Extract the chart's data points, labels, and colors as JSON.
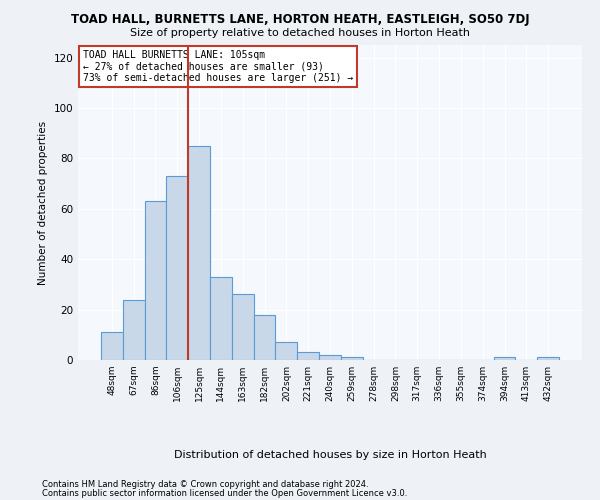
{
  "title1": "TOAD HALL, BURNETTS LANE, HORTON HEATH, EASTLEIGH, SO50 7DJ",
  "title2": "Size of property relative to detached houses in Horton Heath",
  "xlabel": "Distribution of detached houses by size in Horton Heath",
  "ylabel": "Number of detached properties",
  "categories": [
    "48sqm",
    "67sqm",
    "86sqm",
    "106sqm",
    "125sqm",
    "144sqm",
    "163sqm",
    "182sqm",
    "202sqm",
    "221sqm",
    "240sqm",
    "259sqm",
    "278sqm",
    "298sqm",
    "317sqm",
    "336sqm",
    "355sqm",
    "374sqm",
    "394sqm",
    "413sqm",
    "432sqm"
  ],
  "values": [
    11,
    24,
    63,
    73,
    85,
    33,
    26,
    18,
    7,
    3,
    2,
    1,
    0,
    0,
    0,
    0,
    0,
    0,
    1,
    0,
    1
  ],
  "bar_color": "#c8d8e8",
  "bar_edge_color": "#5b9bd5",
  "vline_x": 3.5,
  "vline_color": "#c0392b",
  "annotation_text": "TOAD HALL BURNETTS LANE: 105sqm\n← 27% of detached houses are smaller (93)\n73% of semi-detached houses are larger (251) →",
  "annotation_box_color": "white",
  "annotation_box_edge_color": "#c0392b",
  "ylim": [
    0,
    125
  ],
  "yticks": [
    0,
    20,
    40,
    60,
    80,
    100,
    120
  ],
  "footer1": "Contains HM Land Registry data © Crown copyright and database right 2024.",
  "footer2": "Contains public sector information licensed under the Open Government Licence v3.0.",
  "bg_color": "#eef2f7",
  "plot_bg_color": "#f5f8fc"
}
